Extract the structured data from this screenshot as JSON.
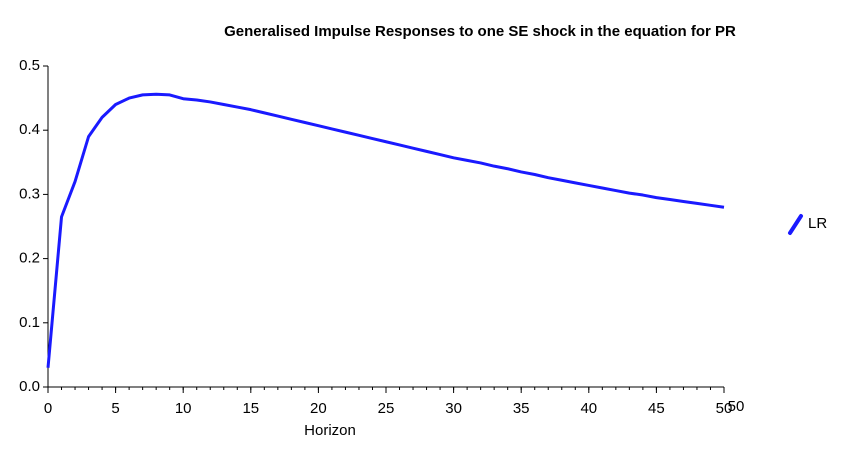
{
  "chart_data": {
    "type": "line",
    "title": "Generalised Impulse Responses to one SE shock in the equation for PR",
    "x_label": "Horizon",
    "x": [
      0,
      1,
      2,
      3,
      4,
      5,
      6,
      7,
      8,
      9,
      10,
      11,
      12,
      13,
      14,
      15,
      16,
      17,
      18,
      19,
      20,
      21,
      22,
      23,
      24,
      25,
      26,
      27,
      28,
      29,
      30,
      31,
      32,
      33,
      34,
      35,
      36,
      37,
      38,
      39,
      40,
      41,
      42,
      43,
      44,
      45,
      46,
      47,
      48,
      49,
      50
    ],
    "series": [
      {
        "name": "LR",
        "color": "#1a1aff",
        "values": [
          0.03,
          0.265,
          0.32,
          0.39,
          0.42,
          0.44,
          0.45,
          0.455,
          0.456,
          0.455,
          0.449,
          0.447,
          0.444,
          0.44,
          0.436,
          0.432,
          0.427,
          0.422,
          0.417,
          0.412,
          0.407,
          0.402,
          0.397,
          0.392,
          0.387,
          0.382,
          0.377,
          0.372,
          0.367,
          0.362,
          0.357,
          0.353,
          0.349,
          0.344,
          0.34,
          0.335,
          0.331,
          0.326,
          0.322,
          0.318,
          0.314,
          0.31,
          0.306,
          0.302,
          0.299,
          0.295,
          0.292,
          0.289,
          0.286,
          0.283,
          0.28
        ]
      }
    ],
    "xlim": [
      0,
      50
    ],
    "ylim": [
      0,
      0.5
    ],
    "xticks": [
      0,
      5,
      10,
      15,
      20,
      25,
      30,
      35,
      40,
      45,
      50
    ],
    "xminorticks": [
      0,
      1,
      2,
      3,
      4,
      5,
      6,
      7,
      8,
      9,
      10,
      11,
      12,
      13,
      14,
      15,
      16,
      17,
      18,
      19,
      20,
      21,
      22,
      23,
      24,
      25,
      26,
      27,
      28,
      29,
      30,
      31,
      32,
      33,
      34,
      35,
      36,
      37,
      38,
      39,
      40,
      41,
      42,
      43,
      44,
      45,
      46,
      47,
      48,
      49,
      50
    ],
    "yticks": [
      {
        "value": 0,
        "label": "0.0"
      },
      0.1,
      0.2,
      0.3,
      0.4,
      0.5
    ],
    "annotations": [
      {
        "text": "50",
        "x": 50
      }
    ],
    "legend": "right"
  }
}
